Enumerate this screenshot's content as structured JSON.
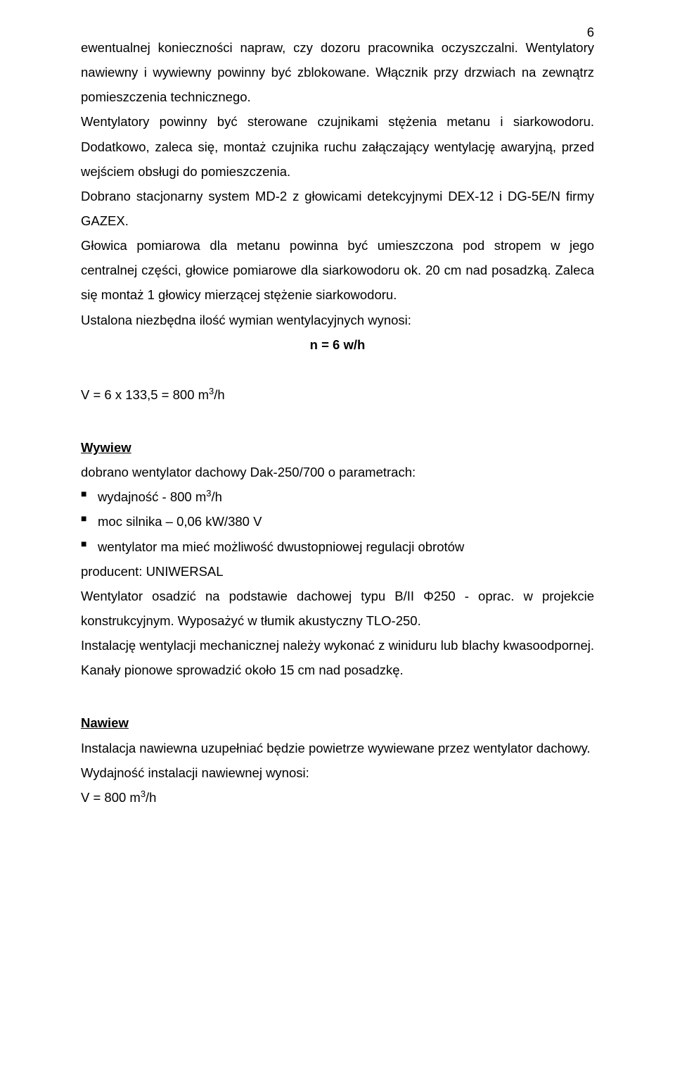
{
  "pageNumber": "6",
  "para1": "ewentualnej konieczności napraw, czy dozoru pracownika oczyszczalni. Wentylatory nawiewny i wywiewny powinny być zblokowane. Włącznik przy drzwiach na zewnątrz pomieszczenia technicznego.",
  "para2": "Wentylatory powinny być sterowane czujnikami stężenia metanu i siarkowodoru. Dodatkowo, zaleca się, montaż czujnika ruchu załączający wentylację awaryjną, przed wejściem obsługi do pomieszczenia.",
  "para3": "Dobrano stacjonarny system MD-2 z głowicami detekcyjnymi DEX-12 i DG-5E/N firmy GAZEX.",
  "para4": "Głowica pomiarowa dla metanu powinna być umieszczona pod stropem w jego centralnej części, głowice pomiarowe dla siarkowodoru ok. 20 cm nad posadzką. Zaleca się montaż 1 głowicy mierzącej stężenie siarkowodoru.",
  "para5": "Ustalona niezbędna ilość wymian wentylacyjnych wynosi:",
  "formulaN": "n = 6 w/h",
  "formulaV1_pre": "V = 6 x 133,5 = 800 m",
  "formulaV1_sup": "3",
  "formulaV1_post": "/h",
  "wywiewHeading": "Wywiew",
  "wywiewLine1": "dobrano wentylator dachowy  Dak-250/700 o parametrach:",
  "wywiewBullet1_pre": "wydajność - 800 m",
  "wywiewBullet1_sup": "3",
  "wywiewBullet1_post": "/h",
  "wywiewBullet2": "moc silnika – 0,06 kW/380 V",
  "wywiewBullet3": "wentylator ma mieć możliwość dwustopniowej regulacji obrotów",
  "wywiewLine2": "producent: UNIWERSAL",
  "wywiewLine3": "Wentylator osadzić na podstawie dachowej typu B/II Φ250 - oprac. w projekcie konstrukcyjnym. Wyposażyć w tłumik akustyczny TLO-250.",
  "wywiewLine4": "Instalację wentylacji mechanicznej należy wykonać z winiduru lub blachy kwasoodpornej. Kanały pionowe sprowadzić około 15 cm nad posadzkę.",
  "nawiewHeading": "Nawiew",
  "nawiewLine1": "Instalacja nawiewna uzupełniać będzie powietrze wywiewane przez wentylator dachowy.",
  "nawiewLine2": "Wydajność instalacji  nawiewnej wynosi:",
  "nawiewFormula_pre": "V = 800 m",
  "nawiewFormula_sup": "3",
  "nawiewFormula_post": "/h"
}
